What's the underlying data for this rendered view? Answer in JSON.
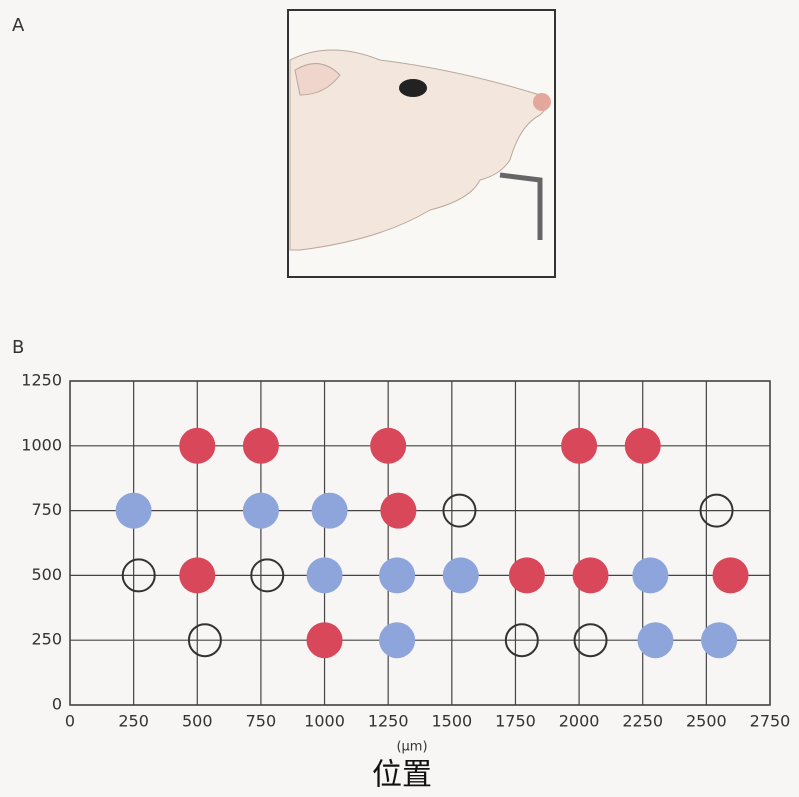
{
  "panel_labels": [
    "A",
    "B"
  ],
  "chart_data": {
    "type": "scatter",
    "xlabel": "(μm)",
    "caption": "位置",
    "xlim": [
      0,
      2750
    ],
    "xticks": [
      0,
      250,
      500,
      750,
      1000,
      1250,
      1500,
      1750,
      2000,
      2250,
      2500,
      2750
    ],
    "ylim": [
      0,
      1250
    ],
    "yticks": [
      0,
      250,
      500,
      750,
      1000,
      1250
    ],
    "grid": true,
    "series": [
      {
        "color": "#d9485a",
        "marker": "filled",
        "x": [
          500,
          750,
          1250,
          2000,
          2250,
          1290,
          500,
          1795,
          2045,
          2595,
          1000
        ],
        "values": [
          1000,
          1000,
          1000,
          1000,
          1000,
          750,
          500,
          500,
          500,
          500,
          250
        ]
      },
      {
        "color": "#8ea5dc",
        "marker": "filled",
        "x": [
          250,
          750,
          1020,
          1000,
          1285,
          1535,
          2280,
          1285,
          2300,
          2550
        ],
        "values": [
          750,
          750,
          750,
          500,
          500,
          500,
          500,
          250,
          250,
          250
        ]
      },
      {
        "color": "#333333",
        "marker": "open",
        "x": [
          1530,
          2540,
          270,
          775,
          530,
          1775,
          2045
        ],
        "values": [
          750,
          750,
          500,
          500,
          250,
          250,
          250
        ]
      }
    ]
  }
}
